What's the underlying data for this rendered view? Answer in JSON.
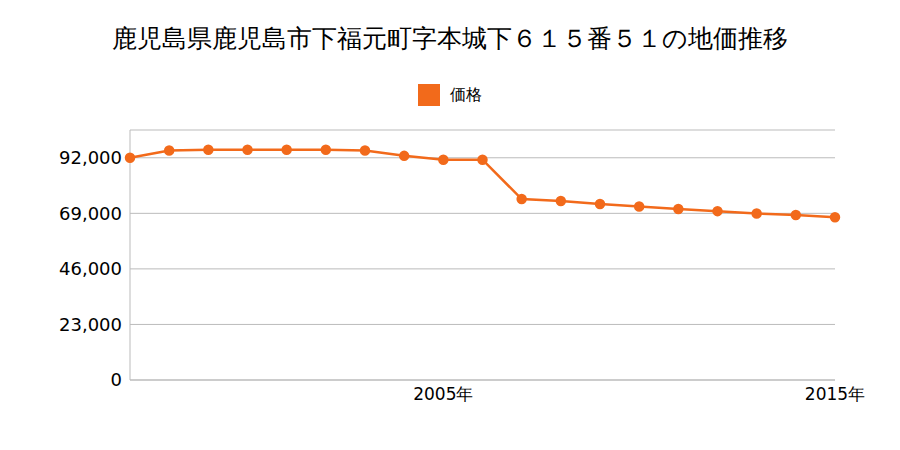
{
  "chart_data": {
    "type": "line",
    "title": "鹿児島県鹿児島市下福元町字本城下６１５番５１の地価推移",
    "categories": [
      null,
      null,
      null,
      null,
      null,
      null,
      null,
      null,
      "2005年",
      null,
      null,
      null,
      null,
      null,
      null,
      null,
      null,
      null,
      "2015年"
    ],
    "series": [
      {
        "name": "価格",
        "color": "#f26a1b",
        "marker": "circle",
        "values": [
          92000,
          95000,
          95300,
          95300,
          95300,
          95300,
          95000,
          92800,
          91200,
          91200,
          74900,
          74100,
          72900,
          71800,
          70800,
          69900,
          68900,
          68300,
          67400
        ]
      }
    ],
    "ylim": [
      0,
      103500
    ],
    "yticks": [
      0,
      {
        "value": 23000,
        "label": "23,000"
      },
      {
        "value": 46000,
        "label": "46,000"
      },
      {
        "value": 69000,
        "label": "69,000"
      },
      {
        "value": 92000,
        "label": "92,000"
      }
    ],
    "grid": true,
    "legend": "top"
  }
}
